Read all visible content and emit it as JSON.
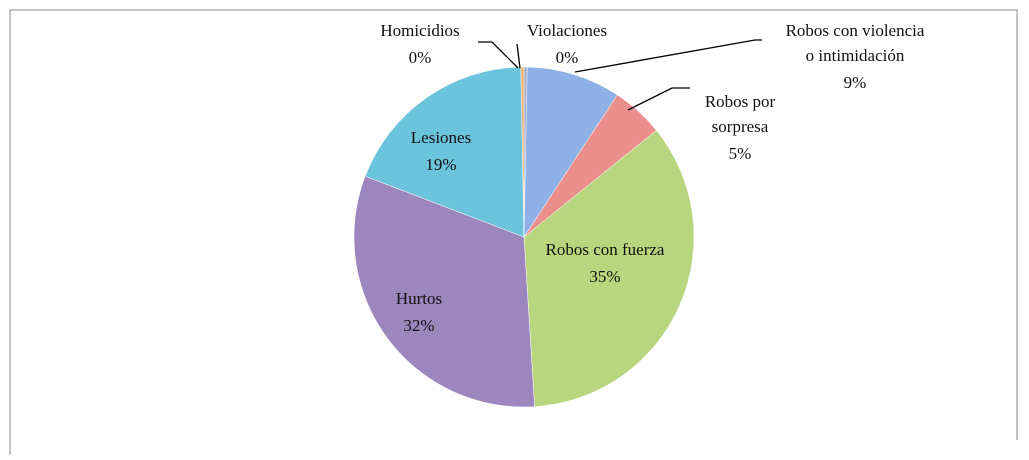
{
  "chart_data": {
    "type": "pie",
    "categories": [
      "Violaciones",
      "Robos con violencia\no intimidación",
      "Robos por\nsorpresa",
      "Robos con fuerza",
      "Hurtos",
      "Lesiones",
      "Homicidios"
    ],
    "values": [
      0.3,
      9,
      5,
      35,
      32,
      19,
      0.3
    ],
    "value_labels": [
      "0%",
      "9%",
      "5%",
      "35%",
      "32%",
      "19%",
      "0%"
    ],
    "colors": [
      "#9fa8c9",
      "#8fb0e6",
      "#eb8f8c",
      "#b7d67e",
      "#9d86bd",
      "#6cc3dc",
      "#f2b06e"
    ]
  }
}
